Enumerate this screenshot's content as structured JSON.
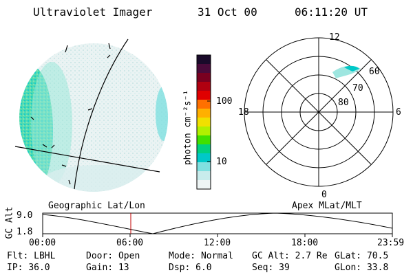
{
  "header": {
    "instrument": "Ultraviolet Imager",
    "date": "31 Oct 00",
    "time": "06:11:20 UT"
  },
  "colorbar": {
    "unit_label": "photon cm⁻²s⁻¹",
    "ticks": [
      "100",
      "10"
    ],
    "colors": [
      "#1a0a2a",
      "#4a0a3a",
      "#7a0020",
      "#b00010",
      "#e00000",
      "#ff7000",
      "#ffb000",
      "#f0e000",
      "#b0f000",
      "#40e000",
      "#00d080",
      "#00c8c8",
      "#80e0e0",
      "#c8ecec",
      "#eef5f5"
    ]
  },
  "polar_plot": {
    "mlt_labels": {
      "top": "12",
      "right": "6",
      "bottom": "0",
      "left": "18"
    },
    "lat_labels": [
      "60",
      "70",
      "80"
    ]
  },
  "globe_labels": {
    "left": "Geographic Lat/Lon",
    "right": "Apex MLat/MLT"
  },
  "altitude_plot": {
    "ylabel": "GC Alt",
    "ymax": "9.0",
    "ymin": "1.8",
    "x_ticks": [
      "00:00",
      "06:00",
      "12:00",
      "18:00",
      "23:59"
    ]
  },
  "footer": {
    "rows": [
      [
        {
          "key": "Flt:",
          "val": "LBHL"
        },
        {
          "key": "Door:",
          "val": "Open"
        },
        {
          "key": "Mode:",
          "val": "Normal"
        },
        {
          "key": "GC Alt:",
          "val": "2.7 Re"
        },
        {
          "key": "GLat:",
          "val": "70.5"
        }
      ],
      [
        {
          "key": "IP:",
          "val": "36.0"
        },
        {
          "key": "Gain:",
          "val": "13"
        },
        {
          "key": "Dsp:",
          "val": "6.0"
        },
        {
          "key": "Seq:",
          "val": "39"
        },
        {
          "key": "GLon:",
          "val": "33.8"
        }
      ]
    ]
  }
}
